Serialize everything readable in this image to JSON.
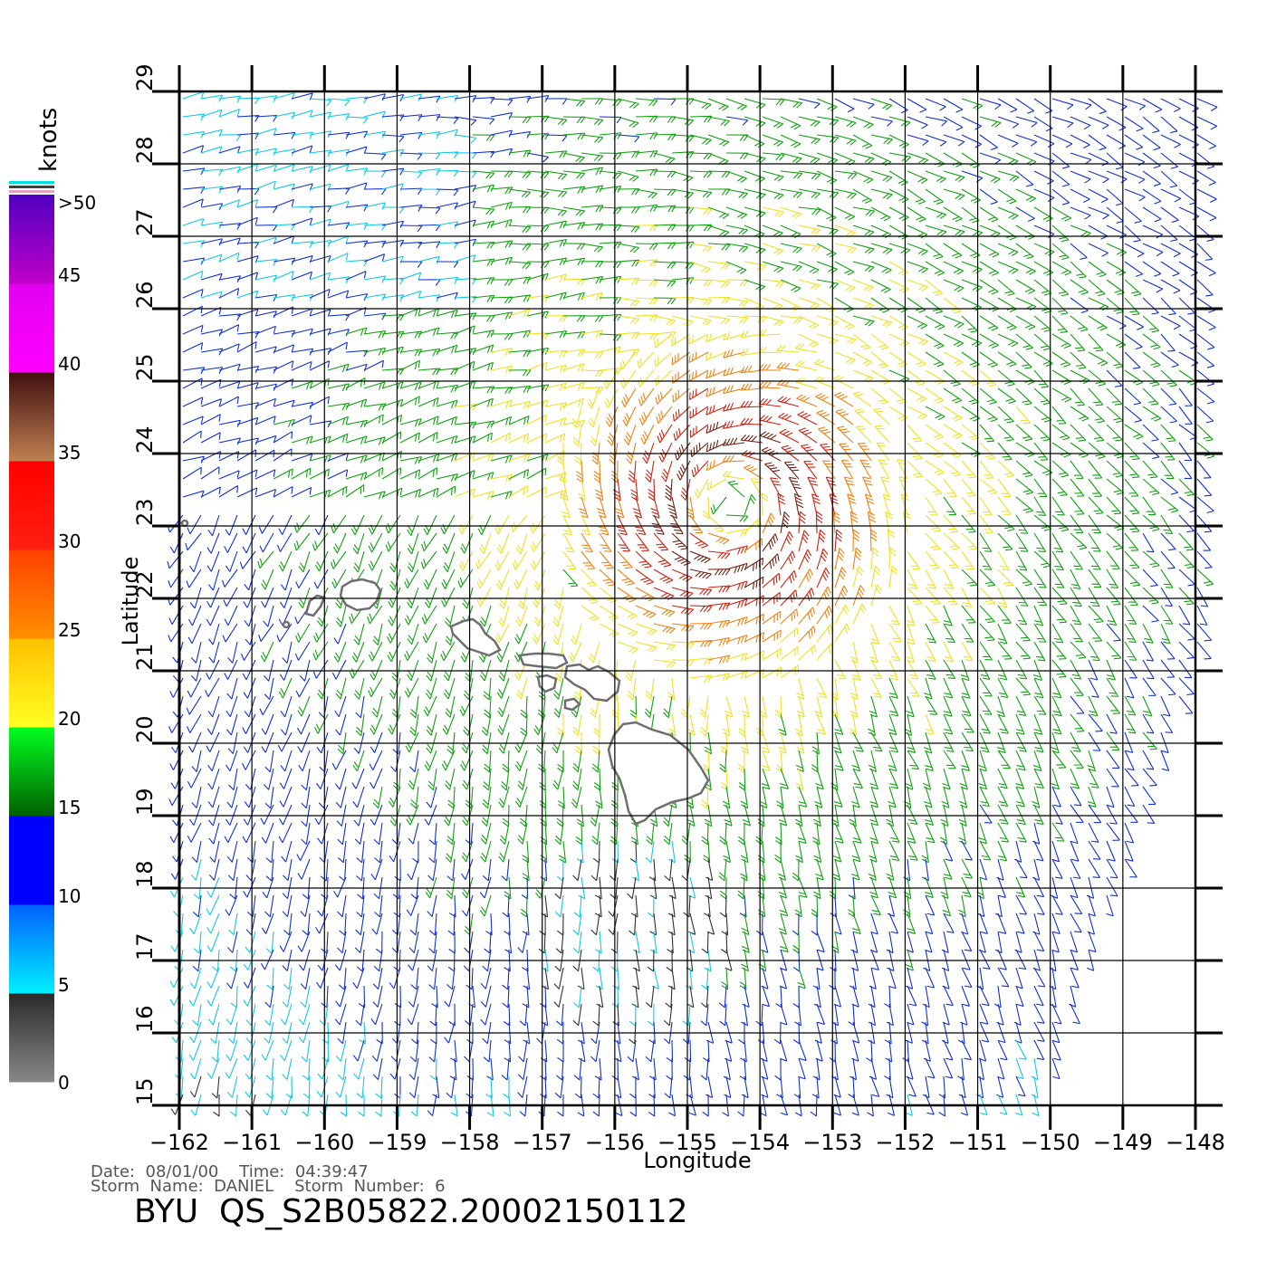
{
  "colorbar": {
    "title": "knots",
    "ticks": [
      "0",
      "5",
      "10",
      "15",
      "20",
      "25",
      "30",
      "35",
      "40",
      "45",
      ">50"
    ],
    "segments": [
      {
        "from": "#888888",
        "to": "#2a2a2a"
      },
      {
        "from": "#00f0ff",
        "to": "#0060ff"
      },
      {
        "from": "#0000ff",
        "to": "#0000ff"
      },
      {
        "from": "#006000",
        "to": "#00ff20"
      },
      {
        "from": "#ffff20",
        "to": "#ffc000"
      },
      {
        "from": "#ff9000",
        "to": "#ff4000"
      },
      {
        "from": "#ff2010",
        "to": "#ff0000"
      },
      {
        "from": "#c08050",
        "to": "#401010"
      },
      {
        "from": "#ff00ff",
        "to": "#e000f0"
      },
      {
        "from": "#c000c8",
        "to": "#5000c0"
      }
    ]
  },
  "map": {
    "xlabel": "Longitude",
    "ylabel": "Latitude",
    "lon_ticks": [
      "−162",
      "−161",
      "−160",
      "−159",
      "−158",
      "−157",
      "−156",
      "−155",
      "−154",
      "−153",
      "−152",
      "−151",
      "−150",
      "−149",
      "−148"
    ],
    "lat_ticks": [
      "15",
      "16",
      "17",
      "18",
      "19",
      "20",
      "21",
      "22",
      "23",
      "24",
      "25",
      "26",
      "27",
      "28",
      "29"
    ],
    "lon_range": [
      -162,
      -148
    ],
    "lat_range": [
      15,
      29
    ],
    "storm_center": {
      "lon": -154.4,
      "lat": 23.3
    }
  },
  "info": {
    "line1": "Date:  08/01/00    Time:  04:39:47",
    "line2": "Storm  Name:  DANIEL    Storm  Number:  6",
    "product": "BYU  QS_S2B05822.20002150112"
  }
}
